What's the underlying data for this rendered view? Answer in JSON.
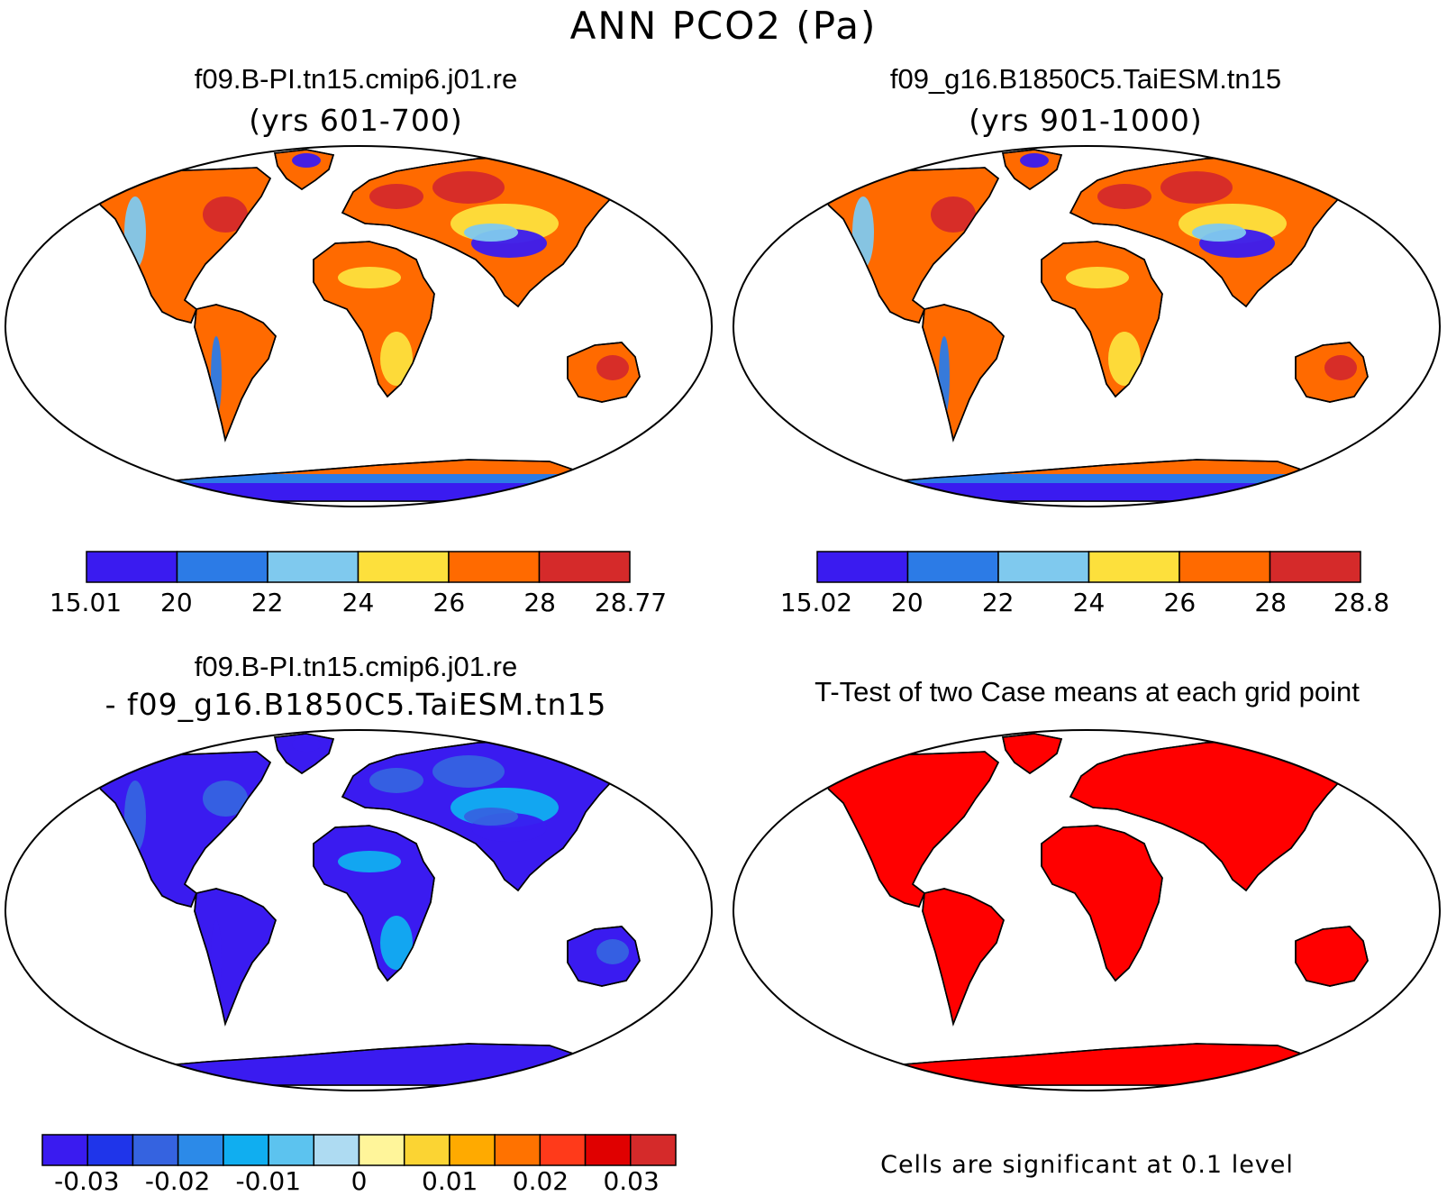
{
  "title": "ANN PCO2 (Pa)",
  "panels": [
    {
      "id": "case1",
      "title": "f09.B-PI.tn15.cmip6.j01.re",
      "subtitle": "(yrs 601-700)",
      "colorbar": {
        "colors": [
          "#3a1bf0",
          "#2c7be6",
          "#7fc9ee",
          "#fde03c",
          "#ff6a00",
          "#d52a2a"
        ],
        "labels": [
          "15.01",
          "20",
          "22",
          "24",
          "26",
          "28",
          "28.77"
        ]
      },
      "land_palette": {
        "base": "#ff6a00",
        "hi": "#d52a2a",
        "mid": "#fde03c",
        "low": "#7fc9ee",
        "lower": "#2c7be6",
        "lowest": "#3a1bf0"
      }
    },
    {
      "id": "case2",
      "title": "f09_g16.B1850C5.TaiESM.tn15",
      "subtitle": "(yrs 901-1000)",
      "colorbar": {
        "colors": [
          "#3a1bf0",
          "#2c7be6",
          "#7fc9ee",
          "#fde03c",
          "#ff6a00",
          "#d52a2a"
        ],
        "labels": [
          "15.02",
          "20",
          "22",
          "24",
          "26",
          "28",
          "28.8"
        ]
      },
      "land_palette": {
        "base": "#ff6a00",
        "hi": "#d52a2a",
        "mid": "#fde03c",
        "low": "#7fc9ee",
        "lower": "#2c7be6",
        "lowest": "#3a1bf0"
      }
    },
    {
      "id": "diff",
      "title": "f09.B-PI.tn15.cmip6.j01.re",
      "subtitle": "- f09_g16.B1850C5.TaiESM.tn15",
      "colorbar": {
        "colors": [
          "#3a1bf0",
          "#1f35ea",
          "#3563e0",
          "#2c8ae8",
          "#10aef0",
          "#5cc3ef",
          "#aedbf2",
          "#fff59a",
          "#fbd433",
          "#ffaa00",
          "#ff7200",
          "#ff3a1a",
          "#e00000",
          "#d52a2a"
        ],
        "labels": [
          "-0.03",
          "-0.02",
          "-0.01",
          "0",
          "0.01",
          "0.02",
          "0.03"
        ]
      },
      "land_palette": {
        "base": "#3a1bf0",
        "hi": "#3563e0",
        "mid": "#10aef0",
        "low": "#3563e0",
        "lower": "#3a1bf0",
        "lowest": "#3a1bf0"
      }
    },
    {
      "id": "ttest",
      "title": "T-Test of two Case means at each grid point",
      "note": "Cells are significant at 0.1 level",
      "land_palette": {
        "base": "#ff0000",
        "hi": "#ff0000",
        "mid": "#ff0000",
        "low": "#ff0000",
        "lower": "#ff0000",
        "lowest": "#ff0000"
      }
    }
  ]
}
